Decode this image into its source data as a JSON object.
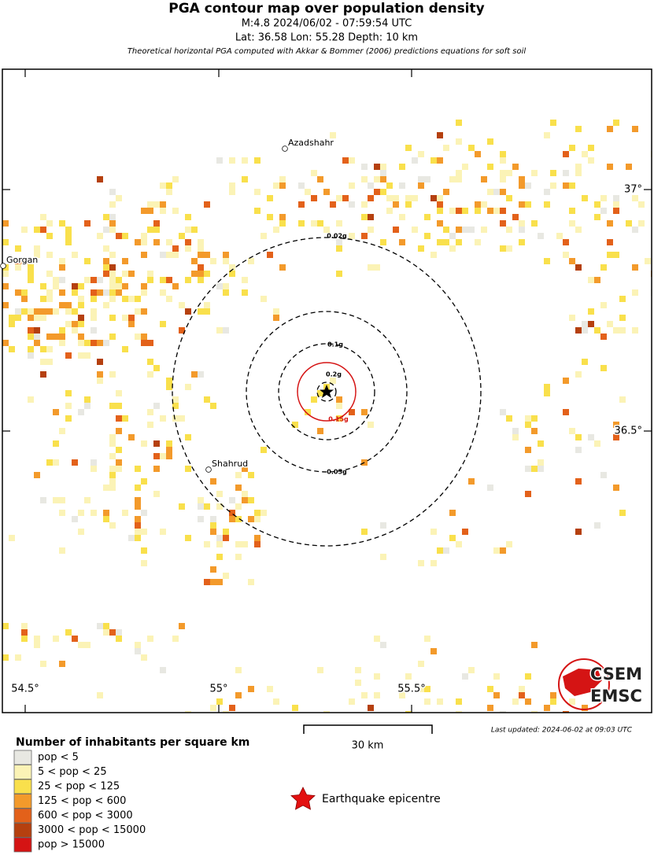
{
  "header": {
    "title": "PGA contour map over population density",
    "line1": "M:4.8 2024/06/02 - 07:59:54 UTC",
    "line2": "Lat: 36.58 Lon: 55.28 Depth: 10 km",
    "note": "Theoretical horizontal PGA computed with Akkar & Bommer (2006) predictions equations for soft soil"
  },
  "map": {
    "cities": [
      "Azadshahr",
      "Gorgan",
      "Shahrud"
    ],
    "contours": [
      "0.02g",
      "0.05g",
      "0.1g",
      "0.15g",
      "0.2g"
    ],
    "lat_labels": [
      "37°",
      "36.5°"
    ],
    "lon_labels": [
      "54.5°",
      "55°",
      "55.5°"
    ],
    "logo_top": "CSEM",
    "logo_bottom": "EMSC"
  },
  "scale": "30 km",
  "updated": "Last updated: 2024-06-02 at 09:03 UTC",
  "legend": {
    "title": "Number of inhabitants per square km",
    "items": [
      {
        "label": "pop < 5",
        "color": "#e8e8e2"
      },
      {
        "label": "5 < pop < 25",
        "color": "#fbf3b6"
      },
      {
        "label": "25 < pop < 125",
        "color": "#f9e04c"
      },
      {
        "label": "125 < pop < 600",
        "color": "#f39a2b"
      },
      {
        "label": "600 < pop < 3000",
        "color": "#e3611a"
      },
      {
        "label": "3000 < pop < 15000",
        "color": "#b5400f"
      },
      {
        "label": "pop > 15000",
        "color": "#d51414"
      }
    ],
    "epicentre": "Earthquake epicentre"
  }
}
